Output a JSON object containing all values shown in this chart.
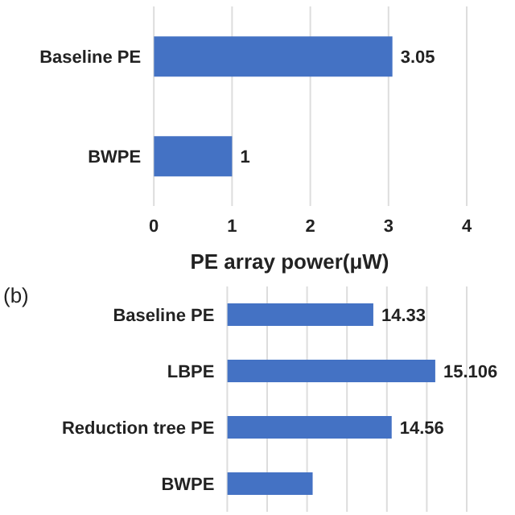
{
  "chart_data": [
    {
      "type": "bar",
      "orientation": "horizontal",
      "categories": [
        "Baseline PE",
        "BWPE"
      ],
      "values": [
        3.05,
        1
      ],
      "color": "#4472c4",
      "xlim": [
        0,
        4
      ],
      "xticks": [
        0,
        1,
        2,
        3,
        4
      ],
      "grid": "x",
      "data_labels": true
    },
    {
      "type": "bar",
      "orientation": "horizontal",
      "title": "PE array power(μW)",
      "annotations": [
        "(b)"
      ],
      "categories": [
        "Baseline PE",
        "LBPE",
        "Reduction tree PE",
        "BWPE"
      ],
      "values": [
        14.33,
        15.106,
        14.56,
        13.57
      ],
      "value_labels": [
        "14.33",
        "15.106",
        "14.56",
        null
      ],
      "color": "#4472c4",
      "xlim": [
        12.5,
        15.5
      ],
      "tick_labels": "y",
      "grid": "x"
    }
  ]
}
